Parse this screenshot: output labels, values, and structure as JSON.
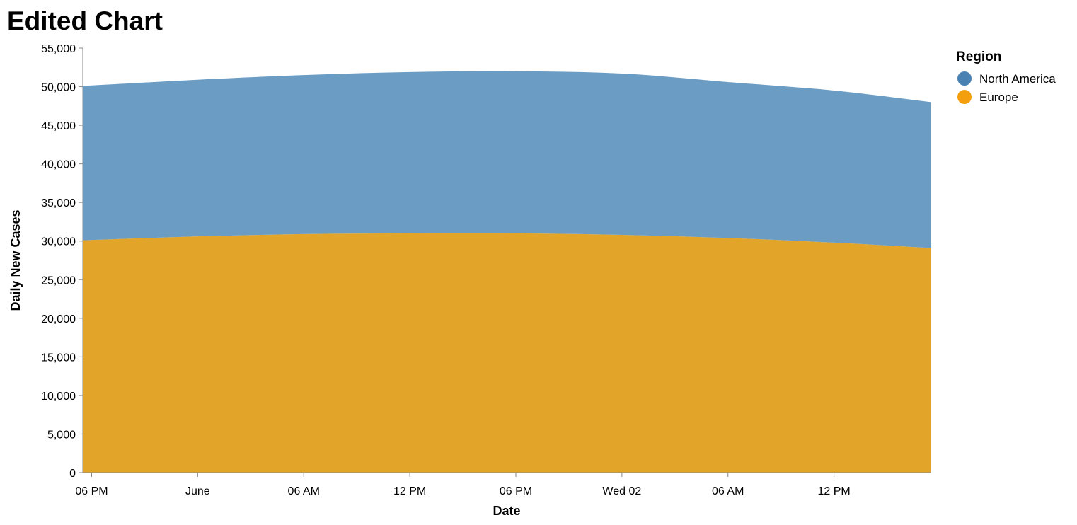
{
  "chart_data": {
    "type": "area",
    "stacked": true,
    "title": "Edited Chart",
    "xlabel": "Date",
    "ylabel": "Daily New Cases",
    "ylim": [
      0,
      55000
    ],
    "y_ticks": [
      0,
      5000,
      10000,
      15000,
      20000,
      25000,
      30000,
      35000,
      40000,
      45000,
      50000,
      55000
    ],
    "x_tick_labels": [
      "06 PM",
      "June",
      "06 AM",
      "12 PM",
      "06 PM",
      "Wed 02",
      "06 AM",
      "12 PM"
    ],
    "x_hours": [
      17,
      23,
      29,
      35,
      41,
      47,
      53,
      59,
      65
    ],
    "legend": {
      "title": "Region",
      "position": "top-right"
    },
    "series": [
      {
        "name": "Europe",
        "color": "#e2a429",
        "legend_color": "#f4a00e",
        "values": [
          30100,
          30600,
          30900,
          31000,
          31000,
          30800,
          30400,
          29800,
          29100
        ]
      },
      {
        "name": "North America",
        "color": "#6b9cc4",
        "legend_color": "#4a81b3",
        "values": [
          20000,
          20300,
          20600,
          20900,
          21000,
          20900,
          20200,
          19700,
          18900
        ]
      }
    ],
    "grid": false
  }
}
